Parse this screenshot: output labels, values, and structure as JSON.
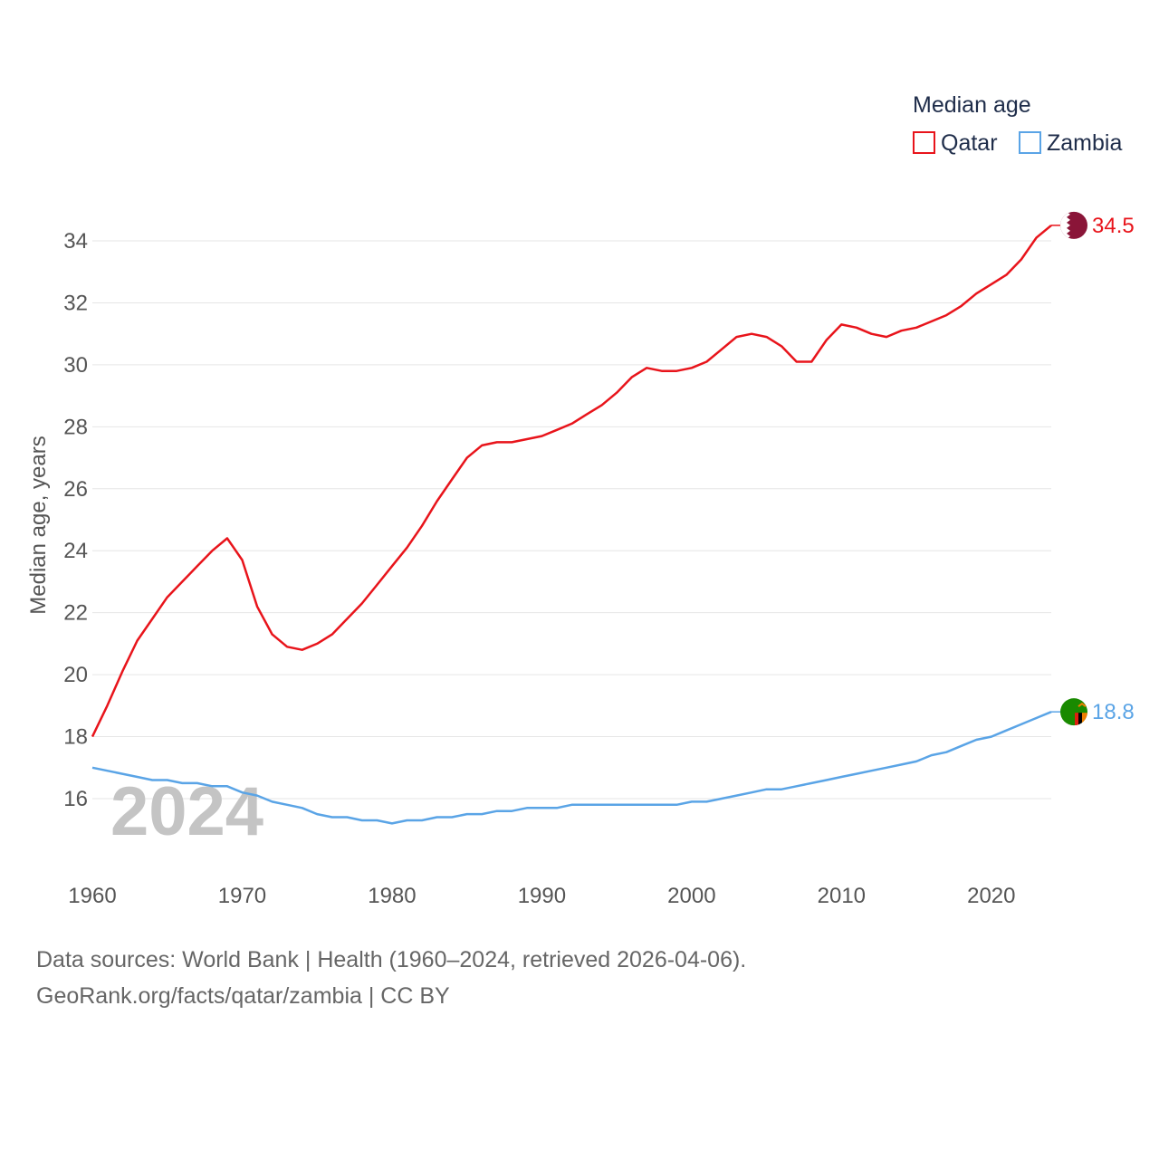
{
  "legend": {
    "title": "Median age",
    "items": [
      {
        "name": "Qatar",
        "color": "#e8141b"
      },
      {
        "name": "Zambia",
        "color": "#5aa4e6"
      }
    ]
  },
  "watermark_year": "2024",
  "end_labels": {
    "qatar": "34.5",
    "zambia": "18.8"
  },
  "source_line1": "Data sources: World Bank | Health (1960–2024, retrieved 2026-04-06).",
  "source_line2": "GeoRank.org/facts/qatar/zambia | CC BY",
  "chart_data": {
    "type": "line",
    "title": "Median age",
    "xlabel": "",
    "ylabel": "Median age, years",
    "xlim": [
      1960,
      2024
    ],
    "ylim": [
      14.5,
      35.2
    ],
    "x_ticks": [
      1960,
      1970,
      1980,
      1990,
      2000,
      2010,
      2020
    ],
    "y_ticks": [
      16,
      18,
      20,
      22,
      24,
      26,
      28,
      30,
      32,
      34
    ],
    "grid": true,
    "legend_position": "top-right",
    "x": [
      1960,
      1961,
      1962,
      1963,
      1964,
      1965,
      1966,
      1967,
      1968,
      1969,
      1970,
      1971,
      1972,
      1973,
      1974,
      1975,
      1976,
      1977,
      1978,
      1979,
      1980,
      1981,
      1982,
      1983,
      1984,
      1985,
      1986,
      1987,
      1988,
      1989,
      1990,
      1991,
      1992,
      1993,
      1994,
      1995,
      1996,
      1997,
      1998,
      1999,
      2000,
      2001,
      2002,
      2003,
      2004,
      2005,
      2006,
      2007,
      2008,
      2009,
      2010,
      2011,
      2012,
      2013,
      2014,
      2015,
      2016,
      2017,
      2018,
      2019,
      2020,
      2021,
      2022,
      2023,
      2024
    ],
    "series": [
      {
        "name": "Qatar",
        "color": "#e8141b",
        "values": [
          18.0,
          19.0,
          20.1,
          21.1,
          21.8,
          22.5,
          23.0,
          23.5,
          24.0,
          24.4,
          23.7,
          22.2,
          21.3,
          20.9,
          20.8,
          21.0,
          21.3,
          21.8,
          22.3,
          22.9,
          23.5,
          24.1,
          24.8,
          25.6,
          26.3,
          27.0,
          27.4,
          27.5,
          27.5,
          27.6,
          27.7,
          27.9,
          28.1,
          28.4,
          28.7,
          29.1,
          29.6,
          29.9,
          29.8,
          29.8,
          29.9,
          30.1,
          30.5,
          30.9,
          31.0,
          30.9,
          30.6,
          30.1,
          30.1,
          30.8,
          31.3,
          31.2,
          31.0,
          30.9,
          31.1,
          31.2,
          31.4,
          31.6,
          31.9,
          32.3,
          32.6,
          32.9,
          33.4,
          34.1,
          34.5
        ]
      },
      {
        "name": "Zambia",
        "color": "#5aa4e6",
        "values": [
          17.0,
          16.9,
          16.8,
          16.7,
          16.6,
          16.6,
          16.5,
          16.5,
          16.4,
          16.4,
          16.2,
          16.1,
          15.9,
          15.8,
          15.7,
          15.5,
          15.4,
          15.4,
          15.3,
          15.3,
          15.2,
          15.3,
          15.3,
          15.4,
          15.4,
          15.5,
          15.5,
          15.6,
          15.6,
          15.7,
          15.7,
          15.7,
          15.8,
          15.8,
          15.8,
          15.8,
          15.8,
          15.8,
          15.8,
          15.8,
          15.9,
          15.9,
          16.0,
          16.1,
          16.2,
          16.3,
          16.3,
          16.4,
          16.5,
          16.6,
          16.7,
          16.8,
          16.9,
          17.0,
          17.1,
          17.2,
          17.4,
          17.5,
          17.7,
          17.9,
          18.0,
          18.2,
          18.4,
          18.6,
          18.8
        ]
      }
    ]
  }
}
